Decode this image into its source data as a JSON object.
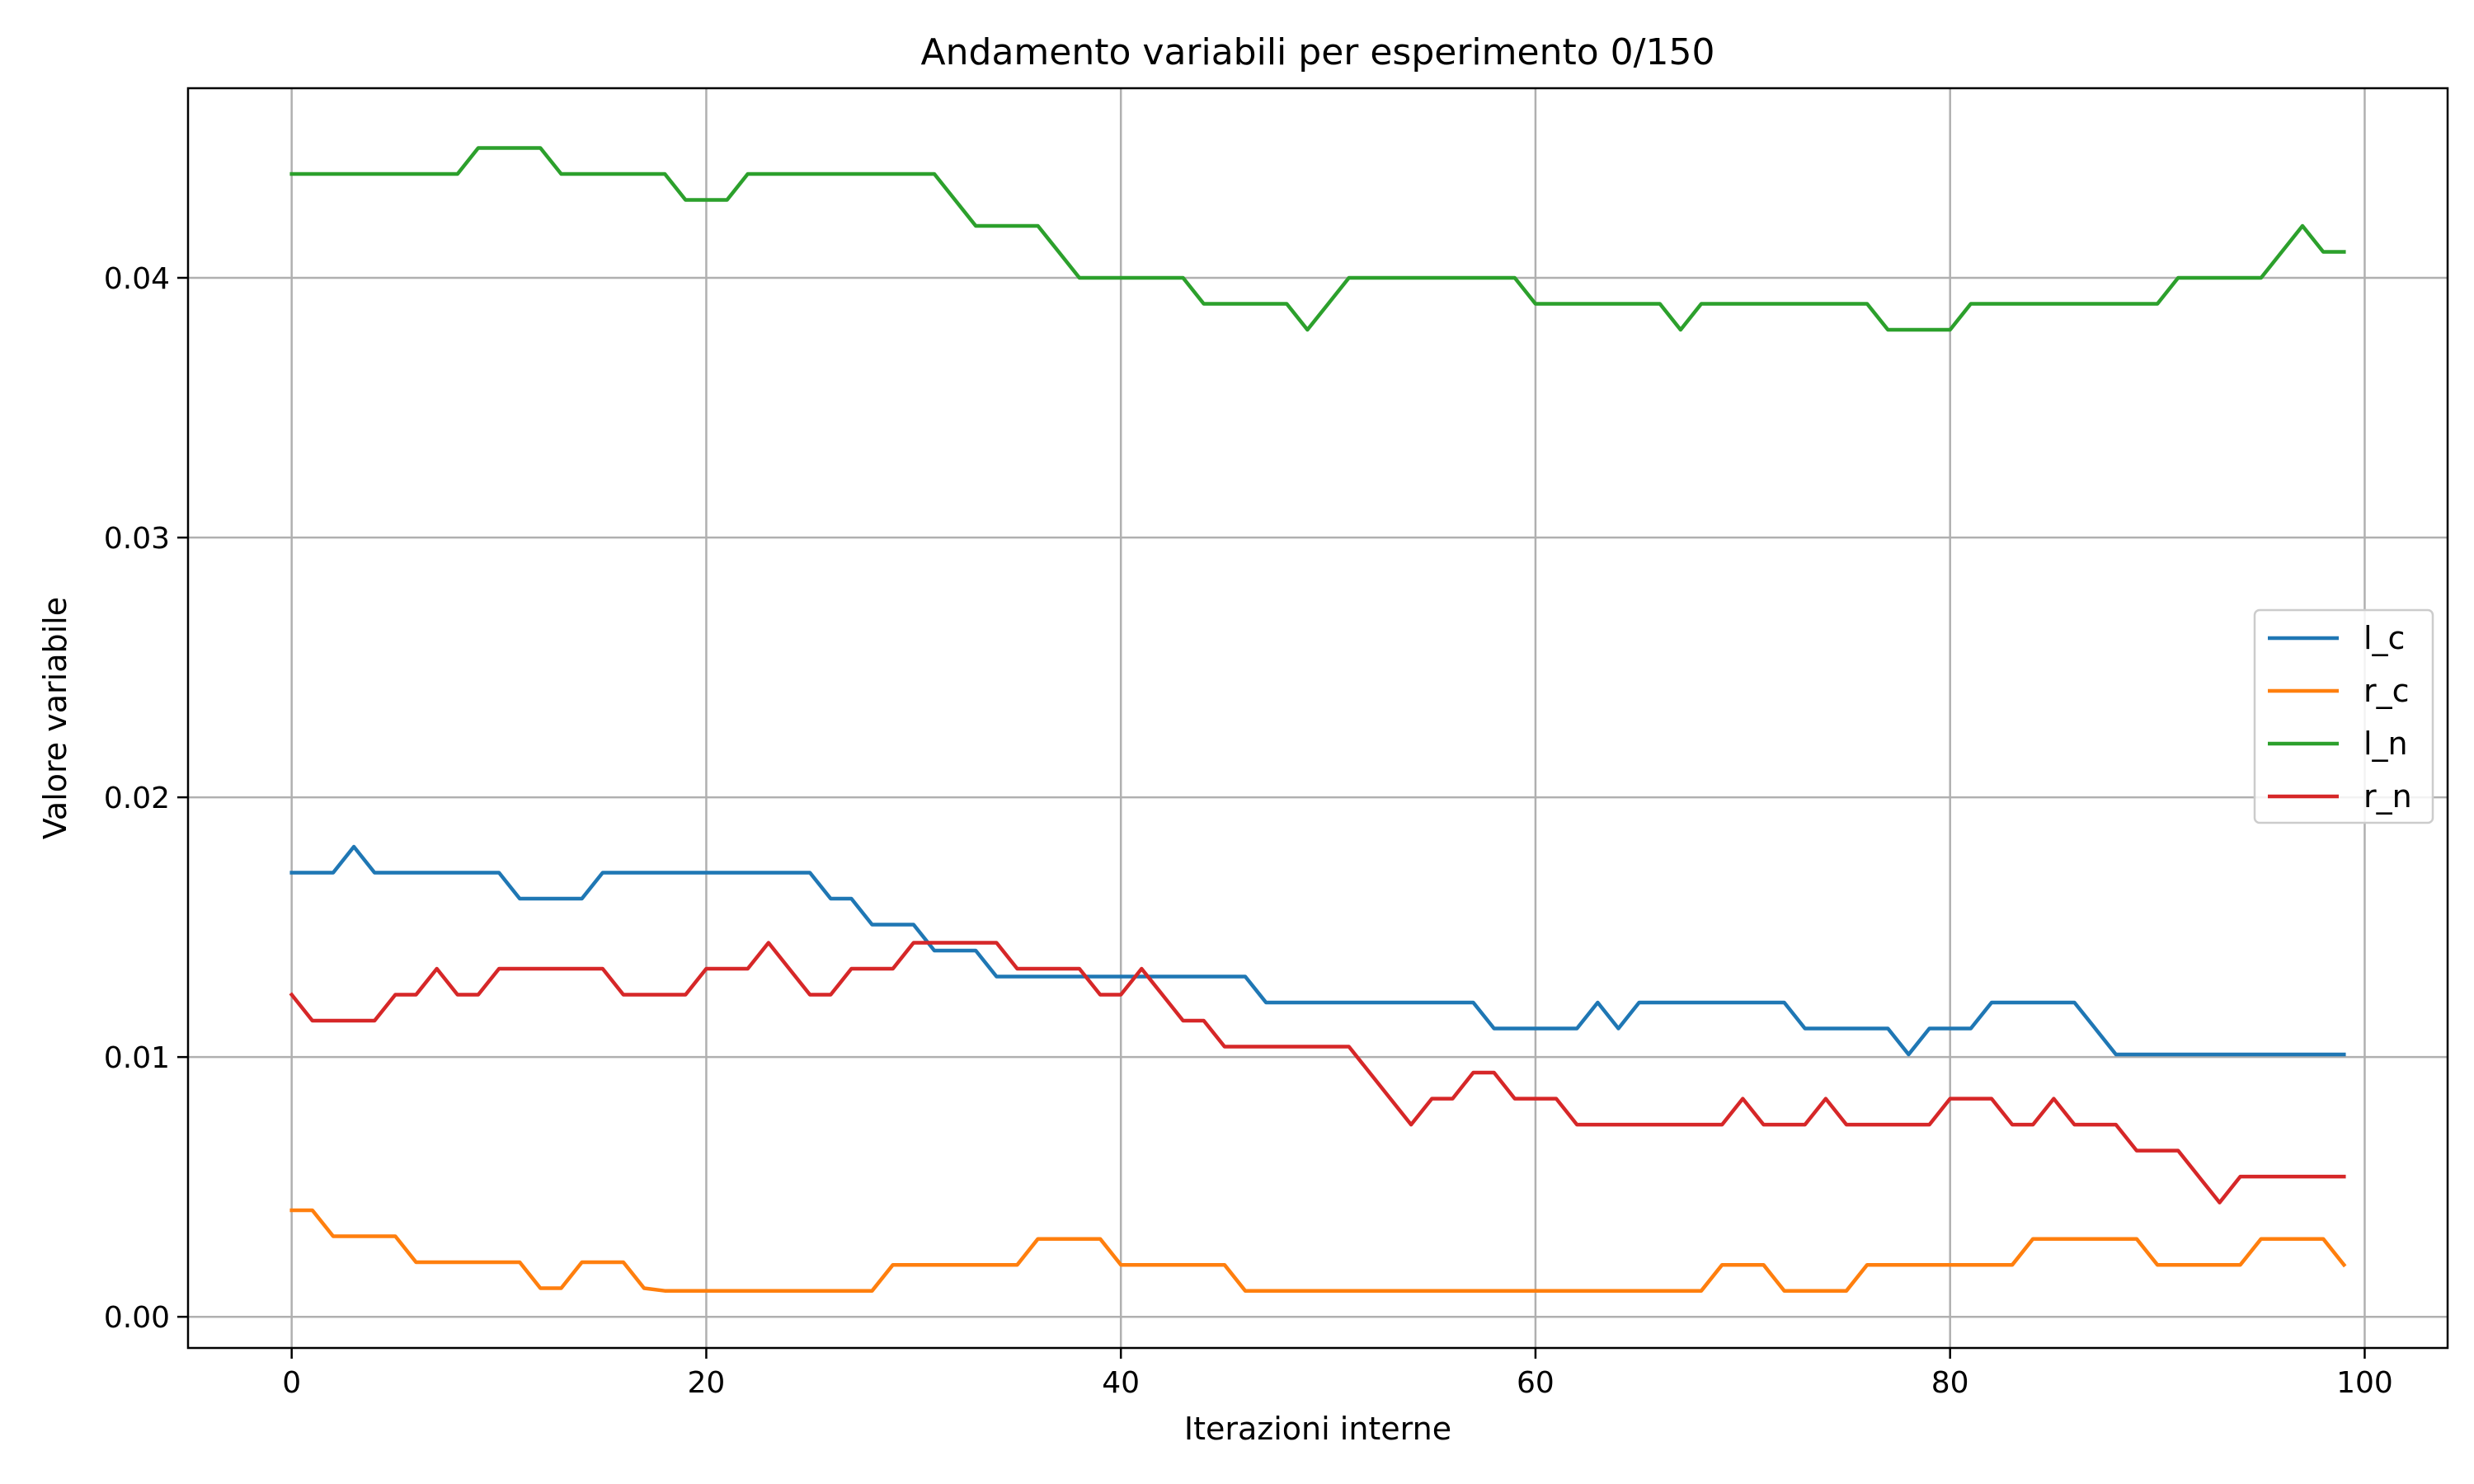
{
  "chart_data": {
    "type": "line",
    "title": "Andamento variabili per esperimento 0/150",
    "xlabel": "Iterazioni interne",
    "ylabel": "Valore variabile",
    "xlim": [
      -5,
      104
    ],
    "ylim": [
      -0.0012,
      0.0473
    ],
    "x_ticks": [
      0,
      20,
      40,
      60,
      80,
      100
    ],
    "x_tick_labels": [
      "0",
      "20",
      "40",
      "60",
      "80",
      "100"
    ],
    "y_ticks": [
      0.0,
      0.01,
      0.02,
      0.03,
      0.04
    ],
    "y_tick_labels": [
      "0.00",
      "0.01",
      "0.02",
      "0.03",
      "0.04"
    ],
    "grid": true,
    "legend_position": "center-right",
    "series": [
      {
        "name": "l_c",
        "color": "#1f77b4",
        "values": [
          0.0171,
          0.0171,
          0.0171,
          0.0181,
          0.0171,
          0.0171,
          0.0171,
          0.0171,
          0.0171,
          0.0171,
          0.0171,
          0.0161,
          0.0161,
          0.0161,
          0.0161,
          0.0171,
          0.0171,
          0.0171,
          0.0171,
          0.0171,
          0.0171,
          0.0171,
          0.0171,
          0.0171,
          0.0171,
          0.0171,
          0.0161,
          0.0161,
          0.0151,
          0.0151,
          0.0151,
          0.0141,
          0.0141,
          0.0141,
          0.0131,
          0.0131,
          0.0131,
          0.0131,
          0.0131,
          0.0131,
          0.0131,
          0.0131,
          0.0131,
          0.0131,
          0.0131,
          0.0131,
          0.0131,
          0.0121,
          0.0121,
          0.0121,
          0.0121,
          0.0121,
          0.0121,
          0.0121,
          0.0121,
          0.0121,
          0.0121,
          0.0121,
          0.0111,
          0.0111,
          0.0111,
          0.0111,
          0.0111,
          0.0121,
          0.0111,
          0.0121,
          0.0121,
          0.0121,
          0.0121,
          0.0121,
          0.0121,
          0.0121,
          0.0121,
          0.0111,
          0.0111,
          0.0111,
          0.0111,
          0.0111,
          0.0101,
          0.0111,
          0.0111,
          0.0111,
          0.0121,
          0.0121,
          0.0121,
          0.0121,
          0.0121,
          0.0111,
          0.0101,
          0.0101,
          0.0101,
          0.0101,
          0.0101,
          0.0101,
          0.0101,
          0.0101,
          0.0101,
          0.0101,
          0.0101,
          0.0101
        ]
      },
      {
        "name": "r_c",
        "color": "#ff7f0e",
        "values": [
          0.0041,
          0.0041,
          0.0031,
          0.0031,
          0.0031,
          0.0031,
          0.0021,
          0.0021,
          0.0021,
          0.0021,
          0.0021,
          0.0021,
          0.0011,
          0.0011,
          0.0021,
          0.0021,
          0.0021,
          0.0011,
          0.001,
          0.001,
          0.001,
          0.001,
          0.001,
          0.001,
          0.001,
          0.001,
          0.001,
          0.001,
          0.001,
          0.002,
          0.002,
          0.002,
          0.002,
          0.002,
          0.002,
          0.002,
          0.003,
          0.003,
          0.003,
          0.003,
          0.002,
          0.002,
          0.002,
          0.002,
          0.002,
          0.002,
          0.001,
          0.001,
          0.001,
          0.001,
          0.001,
          0.001,
          0.001,
          0.001,
          0.001,
          0.001,
          0.001,
          0.001,
          0.001,
          0.001,
          0.001,
          0.001,
          0.001,
          0.001,
          0.001,
          0.001,
          0.001,
          0.001,
          0.001,
          0.002,
          0.002,
          0.002,
          0.001,
          0.001,
          0.001,
          0.001,
          0.002,
          0.002,
          0.002,
          0.002,
          0.002,
          0.002,
          0.002,
          0.002,
          0.003,
          0.003,
          0.003,
          0.003,
          0.003,
          0.003,
          0.002,
          0.002,
          0.002,
          0.002,
          0.002,
          0.003,
          0.003,
          0.003,
          0.003,
          0.002
        ]
      },
      {
        "name": "l_n",
        "color": "#2ca02c",
        "values": [
          0.044,
          0.044,
          0.044,
          0.044,
          0.044,
          0.044,
          0.044,
          0.044,
          0.044,
          0.045,
          0.045,
          0.045,
          0.045,
          0.044,
          0.044,
          0.044,
          0.044,
          0.044,
          0.044,
          0.043,
          0.043,
          0.043,
          0.044,
          0.044,
          0.044,
          0.044,
          0.044,
          0.044,
          0.044,
          0.044,
          0.044,
          0.044,
          0.043,
          0.042,
          0.042,
          0.042,
          0.042,
          0.041,
          0.04,
          0.04,
          0.04,
          0.04,
          0.04,
          0.04,
          0.039,
          0.039,
          0.039,
          0.039,
          0.039,
          0.038,
          0.039,
          0.04,
          0.04,
          0.04,
          0.04,
          0.04,
          0.04,
          0.04,
          0.04,
          0.04,
          0.039,
          0.039,
          0.039,
          0.039,
          0.039,
          0.039,
          0.039,
          0.038,
          0.039,
          0.039,
          0.039,
          0.039,
          0.039,
          0.039,
          0.039,
          0.039,
          0.039,
          0.038,
          0.038,
          0.038,
          0.038,
          0.039,
          0.039,
          0.039,
          0.039,
          0.039,
          0.039,
          0.039,
          0.039,
          0.039,
          0.039,
          0.04,
          0.04,
          0.04,
          0.04,
          0.04,
          0.041,
          0.042,
          0.041,
          0.041
        ]
      },
      {
        "name": "r_n",
        "color": "#d62728",
        "values": [
          0.0124,
          0.0114,
          0.0114,
          0.0114,
          0.0114,
          0.0124,
          0.0124,
          0.0134,
          0.0124,
          0.0124,
          0.0134,
          0.0134,
          0.0134,
          0.0134,
          0.0134,
          0.0134,
          0.0124,
          0.0124,
          0.0124,
          0.0124,
          0.0134,
          0.0134,
          0.0134,
          0.0144,
          0.0134,
          0.0124,
          0.0124,
          0.0134,
          0.0134,
          0.0134,
          0.0144,
          0.0144,
          0.0144,
          0.0144,
          0.0144,
          0.0134,
          0.0134,
          0.0134,
          0.0134,
          0.0124,
          0.0124,
          0.0134,
          0.0124,
          0.0114,
          0.0114,
          0.0104,
          0.0104,
          0.0104,
          0.0104,
          0.0104,
          0.0104,
          0.0104,
          0.0094,
          0.0084,
          0.0074,
          0.0084,
          0.0084,
          0.0094,
          0.0094,
          0.0084,
          0.0084,
          0.0084,
          0.0074,
          0.0074,
          0.0074,
          0.0074,
          0.0074,
          0.0074,
          0.0074,
          0.0074,
          0.0084,
          0.0074,
          0.0074,
          0.0074,
          0.0084,
          0.0074,
          0.0074,
          0.0074,
          0.0074,
          0.0074,
          0.0084,
          0.0084,
          0.0084,
          0.0074,
          0.0074,
          0.0084,
          0.0074,
          0.0074,
          0.0074,
          0.0064,
          0.0064,
          0.0064,
          0.0054,
          0.0044,
          0.0054,
          0.0054,
          0.0054,
          0.0054,
          0.0054,
          0.0054
        ]
      }
    ]
  }
}
